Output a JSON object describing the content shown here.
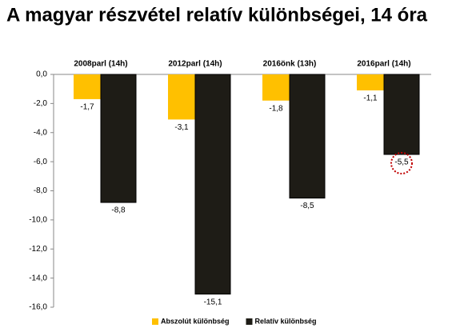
{
  "chart_data": {
    "type": "bar",
    "title": "A magyar részvétel relatív különbségei, 14 óra",
    "categories": [
      "2008parl (14h)",
      "2012parl (14h)",
      "2016önk (13h)",
      "2016parl (14h)"
    ],
    "series": [
      {
        "name": "Abszolút különbség",
        "color": "#ffc000",
        "values": [
          -1.7,
          -3.1,
          -1.8,
          -1.1
        ],
        "value_labels": [
          "-1,7",
          "-3,1",
          "-1,8",
          "-1,1"
        ]
      },
      {
        "name": "Relatív különbség",
        "color": "#1e1c16",
        "values": [
          -8.8,
          -15.1,
          -8.5,
          -5.5
        ],
        "value_labels": [
          "-8,8",
          "-15,1",
          "-8,5",
          "-5,5"
        ]
      }
    ],
    "ylim": [
      -16,
      0
    ],
    "yticks": [
      {
        "value": 0,
        "label": "0,0"
      },
      {
        "value": -2,
        "label": "-2,0"
      },
      {
        "value": -4,
        "label": "-4,0"
      },
      {
        "value": -6,
        "label": "-6,0"
      },
      {
        "value": -8,
        "label": "-8,0"
      },
      {
        "value": -10,
        "label": "-10,0"
      },
      {
        "value": -12,
        "label": "-12,0"
      },
      {
        "value": -14,
        "label": "-14,0"
      },
      {
        "value": -16,
        "label": "-16,0"
      }
    ],
    "legend": "bottom"
  }
}
